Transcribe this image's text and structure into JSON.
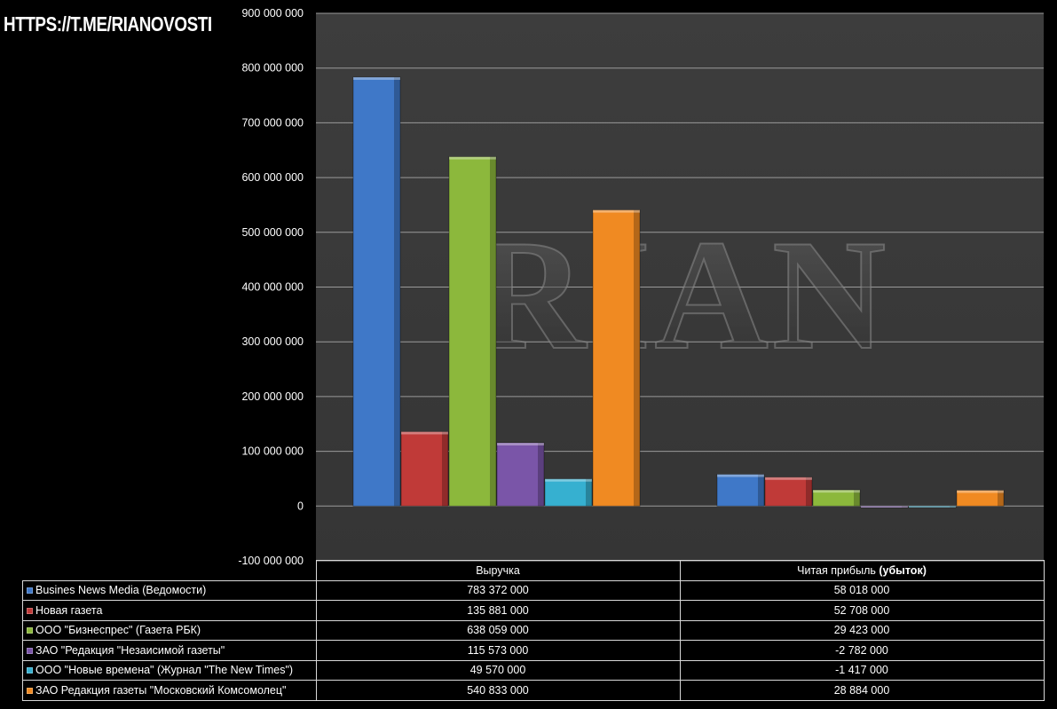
{
  "watermark_link": "HTTPS://T.ME/RIANOVOSTI",
  "watermark_logo": "RIAN",
  "colors": {
    "background": "#000000",
    "plot_area": "#3a3a3a",
    "gridline": "#9a9a9a"
  },
  "chart_data": {
    "type": "bar",
    "categories": [
      "Выручка",
      "Читая прибыль (убыток)"
    ],
    "category_parts": [
      {
        "normal": "Выручка",
        "bold": ""
      },
      {
        "normal": "Читая прибыль ",
        "bold": "(убыток)"
      }
    ],
    "series": [
      {
        "name": "Busines News Media (Ведомости)",
        "values": [
          783372000,
          58018000
        ],
        "labels": [
          "783 372 000",
          "58 018 000"
        ],
        "color": "#3f78c8"
      },
      {
        "name": "Новая газета",
        "values": [
          135881000,
          52708000
        ],
        "labels": [
          "135 881 000",
          "52 708 000"
        ],
        "color": "#c03a38"
      },
      {
        "name": "ООО \"Бизнеспрес\" (Газета РБК)",
        "values": [
          638059000,
          29423000
        ],
        "labels": [
          "638 059 000",
          "29 423 000"
        ],
        "color": "#8cb83c"
      },
      {
        "name": "ЗАО \"Редакция \"Незаисимой газеты\"",
        "values": [
          115573000,
          -2782000
        ],
        "labels": [
          "115 573 000",
          "-2 782 000"
        ],
        "color": "#7a55a8"
      },
      {
        "name": "ООО \"Новые времена\" (Журнал \"The New Times\")",
        "values": [
          49570000,
          -1417000
        ],
        "labels": [
          "49 570 000",
          "-1 417 000"
        ],
        "color": "#36b0d0"
      },
      {
        "name": "ЗАО Редакция газеты \"Московский Комсомолец\"",
        "values": [
          540833000,
          28884000
        ],
        "labels": [
          "540 833 000",
          "28 884 000"
        ],
        "color": "#f08a22"
      }
    ],
    "ylim": [
      -100000000,
      900000000
    ],
    "yticks": [
      900000000,
      800000000,
      700000000,
      600000000,
      500000000,
      400000000,
      300000000,
      200000000,
      100000000,
      0,
      -100000000
    ],
    "ytick_labels": [
      "900 000 000",
      "800 000 000",
      "700 000 000",
      "600 000 000",
      "500 000 000",
      "400 000 000",
      "300 000 000",
      "200 000 000",
      "100 000 000",
      "0",
      "-100 000 000"
    ],
    "grid": true,
    "legend": "data table below chart"
  }
}
